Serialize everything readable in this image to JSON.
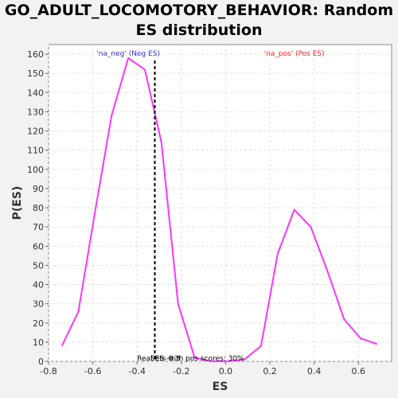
{
  "chart_data": {
    "type": "line",
    "title_line1": "GO_ADULT_LOCOMOTORY_BEHAVIOR: Random",
    "title_line2": "ES distribution",
    "xlabel": "ES",
    "ylabel": "P(ES)",
    "xlim": [
      -0.8,
      0.75
    ],
    "ylim": [
      0,
      165
    ],
    "x_ticks": [
      -0.8,
      -0.6,
      -0.4,
      -0.2,
      0.0,
      0.2,
      0.4,
      0.6
    ],
    "x_tick_labels": [
      "-0.8",
      "-0.6",
      "-0.4",
      "-0.2",
      "0.0",
      "0.2",
      "0.4",
      "0.6"
    ],
    "y_ticks": [
      0,
      10,
      20,
      30,
      40,
      50,
      60,
      70,
      80,
      90,
      100,
      110,
      120,
      130,
      140,
      150,
      160
    ],
    "grid": true,
    "series": [
      {
        "color": "#ff33ff",
        "x": [
          -0.74,
          -0.665,
          -0.59,
          -0.515,
          -0.44,
          -0.365,
          -0.29,
          -0.215,
          -0.14,
          -0.065,
          0.01,
          0.085,
          0.16,
          0.235,
          0.31,
          0.385,
          0.46,
          0.535,
          0.61,
          0.685
        ],
        "y": [
          8,
          26,
          78,
          128,
          158,
          152,
          114,
          30,
          2,
          0,
          0,
          1,
          8,
          56,
          79,
          70,
          47,
          22,
          12,
          9
        ]
      }
    ],
    "real_es": -0.32,
    "annotations": {
      "neg_label": "'na_neg' (Neg ES)",
      "pos_label": "'na_pos' (Pos ES)",
      "real_es_label": "Real ES -0.3",
      "pos_scores_label": "Sets with pos scores: 30%"
    },
    "colors": {
      "neg_label": "#3333cc",
      "pos_label": "#ff2222",
      "plot_bg": "#ffffff",
      "grid": "#e0e0e0"
    }
  }
}
